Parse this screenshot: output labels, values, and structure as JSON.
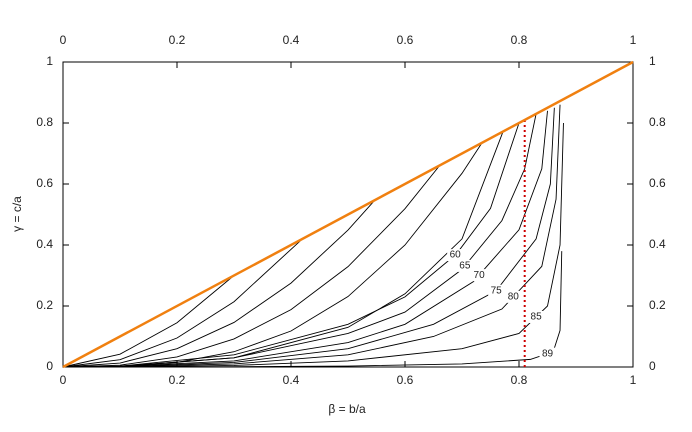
{
  "chart_data": {
    "type": "line",
    "x_label": "β = b/a",
    "y_label": "γ = c/a",
    "xlim": [
      0,
      1
    ],
    "ylim": [
      0,
      1
    ],
    "xticks": [
      0,
      0.2,
      0.4,
      0.6,
      0.8,
      1
    ],
    "yticks": [
      0,
      0.2,
      0.4,
      0.6,
      0.8,
      1
    ],
    "mirror_axes": true,
    "series": [
      {
        "color": "#000000",
        "x": [
          0,
          0.1,
          0.2,
          0.3
        ],
        "values": [
          0,
          0.042,
          0.145,
          0.3
        ]
      },
      {
        "color": "#000000",
        "x": [
          0,
          0.1,
          0.2,
          0.3,
          0.42
        ],
        "values": [
          0,
          0.024,
          0.095,
          0.214,
          0.42
        ]
      },
      {
        "color": "#000000",
        "x": [
          0,
          0.1,
          0.2,
          0.3,
          0.4,
          0.5,
          0.547
        ],
        "values": [
          0,
          0.013,
          0.06,
          0.146,
          0.275,
          0.449,
          0.547
        ]
      },
      {
        "color": "#000000",
        "x": [
          0,
          0.1,
          0.2,
          0.3,
          0.4,
          0.5,
          0.6,
          0.661
        ],
        "values": [
          0,
          0.006,
          0.033,
          0.092,
          0.188,
          0.329,
          0.519,
          0.661
        ]
      },
      {
        "color": "#000000",
        "x": [
          0,
          0.1,
          0.2,
          0.3,
          0.4,
          0.5,
          0.6,
          0.7,
          0.735
        ],
        "values": [
          0,
          0.002,
          0.015,
          0.05,
          0.118,
          0.231,
          0.4,
          0.635,
          0.735
        ]
      },
      {
        "color": "#000000",
        "x": [
          0,
          0.1,
          0.3,
          0.5,
          0.6,
          0.7,
          0.772
        ],
        "values": [
          0,
          0.002,
          0.03,
          0.13,
          0.24,
          0.42,
          0.772
        ]
      },
      {
        "color": "#000000",
        "label": "60",
        "x": [
          0,
          0.1,
          0.3,
          0.5,
          0.6,
          0.69,
          0.75,
          0.8
        ],
        "values": [
          0,
          0.003,
          0.04,
          0.14,
          0.23,
          0.37,
          0.52,
          0.8
        ]
      },
      {
        "color": "#000000",
        "label": "65",
        "x": [
          0,
          0.1,
          0.3,
          0.5,
          0.6,
          0.7,
          0.77,
          0.81,
          0.83
        ],
        "values": [
          0,
          0.002,
          0.03,
          0.11,
          0.18,
          0.32,
          0.48,
          0.65,
          0.83
        ]
      },
      {
        "color": "#000000",
        "label": "70",
        "x": [
          0,
          0.1,
          0.3,
          0.5,
          0.6,
          0.72,
          0.8,
          0.84,
          0.85
        ],
        "values": [
          0,
          0.002,
          0.02,
          0.08,
          0.14,
          0.28,
          0.45,
          0.65,
          0.84
        ]
      },
      {
        "color": "#000000",
        "label": "75",
        "x": [
          0,
          0.1,
          0.3,
          0.5,
          0.65,
          0.76,
          0.83,
          0.855,
          0.862
        ],
        "values": [
          0,
          0.001,
          0.015,
          0.06,
          0.14,
          0.25,
          0.42,
          0.6,
          0.85
        ]
      },
      {
        "color": "#000000",
        "label": "80",
        "x": [
          0,
          0.1,
          0.3,
          0.5,
          0.65,
          0.77,
          0.84,
          0.865,
          0.872
        ],
        "values": [
          0,
          0.001,
          0.01,
          0.04,
          0.1,
          0.19,
          0.33,
          0.55,
          0.86
        ]
      },
      {
        "color": "#000000",
        "label": "85",
        "x": [
          0,
          0.1,
          0.3,
          0.5,
          0.7,
          0.8,
          0.85,
          0.872,
          0.878
        ],
        "values": [
          0,
          0.0005,
          0.005,
          0.02,
          0.06,
          0.11,
          0.2,
          0.4,
          0.8
        ]
      },
      {
        "color": "#000000",
        "label": "89",
        "x": [
          0,
          0.1,
          0.3,
          0.5,
          0.7,
          0.82,
          0.86,
          0.872,
          0.875
        ],
        "values": [
          0,
          0,
          0.001,
          0.003,
          0.01,
          0.025,
          0.05,
          0.12,
          0.38
        ]
      },
      {
        "color": "#cc0000",
        "dashed": true,
        "x": [
          0.81,
          0.81
        ],
        "values": [
          0,
          0.81
        ]
      },
      {
        "color": "#f08010",
        "width": 2.5,
        "x": [
          0,
          1
        ],
        "values": [
          0,
          1
        ]
      }
    ]
  }
}
